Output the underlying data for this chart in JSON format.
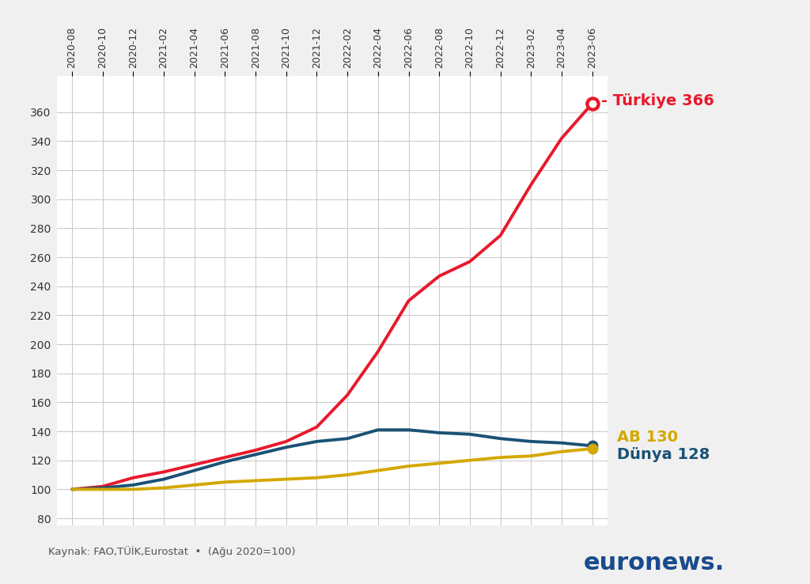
{
  "x_labels": [
    "2020-08",
    "2020-10",
    "2020-12",
    "2021-02",
    "2021-04",
    "2021-06",
    "2021-08",
    "2021-10",
    "2021-12",
    "2022-02",
    "2022-04",
    "2022-06",
    "2022-08",
    "2022-10",
    "2022-12",
    "2023-02",
    "2023-04",
    "2023-06"
  ],
  "turkiye_y": [
    100,
    102,
    108,
    112,
    117,
    122,
    127,
    133,
    143,
    165,
    195,
    230,
    247,
    257,
    275,
    310,
    342,
    366
  ],
  "ab_y": [
    100,
    101,
    103,
    107,
    113,
    119,
    124,
    129,
    133,
    135,
    141,
    141,
    139,
    138,
    135,
    133,
    132,
    130
  ],
  "dunya_y": [
    100,
    100,
    100,
    101,
    103,
    105,
    106,
    107,
    108,
    110,
    113,
    116,
    118,
    120,
    122,
    123,
    126,
    128
  ],
  "turkiye_color": "#e8192c",
  "ab_color": "#1a5276",
  "dunya_color": "#d4a800",
  "label_turkiye": "- Türkiye 366",
  "label_ab": "AB 130",
  "label_dunya": "Dünya 128",
  "ylim": [
    75,
    385
  ],
  "yticks": [
    80,
    100,
    120,
    140,
    160,
    180,
    200,
    220,
    240,
    260,
    280,
    300,
    320,
    340,
    360
  ],
  "source_text": "Kaynak: FAO,TÜİK,Eurostat  •  (Ağu 2020=100)",
  "background_color": "#f0f0f0",
  "grid_color": "#c8c8c8",
  "line_width": 2.8,
  "euronews_color": "#1a4b8c"
}
